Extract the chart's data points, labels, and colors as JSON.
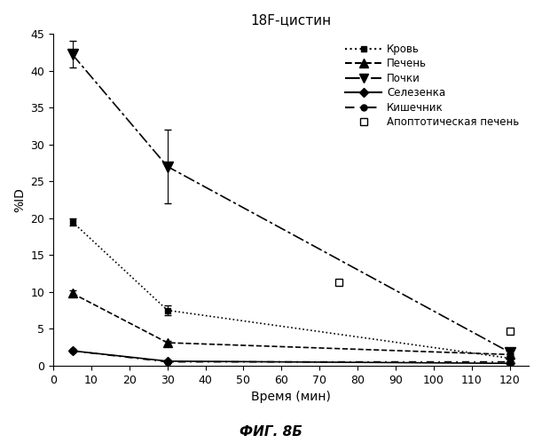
{
  "title": "18F-цистин",
  "xlabel": "Время (мин)",
  "ylabel": "%ID",
  "caption": "ФИГ. 8Б",
  "xlim": [
    0,
    125
  ],
  "ylim": [
    0,
    45
  ],
  "xticks": [
    0,
    10,
    20,
    30,
    40,
    50,
    60,
    70,
    80,
    90,
    100,
    110,
    120
  ],
  "yticks": [
    0,
    5,
    10,
    15,
    20,
    25,
    30,
    35,
    40,
    45
  ],
  "blood": {
    "x": [
      5,
      30,
      120
    ],
    "y": [
      19.5,
      7.5,
      1.0
    ],
    "yerr": [
      0.5,
      0.7,
      0.2
    ],
    "label": "Кровь"
  },
  "liver": {
    "x": [
      5,
      30,
      120
    ],
    "y": [
      9.8,
      3.1,
      1.5
    ],
    "yerr": [
      0.4,
      0.3,
      0.2
    ],
    "label": "Печень"
  },
  "kidney": {
    "x": [
      5,
      30,
      120
    ],
    "y": [
      42.2,
      27.0,
      1.8
    ],
    "yerr": [
      1.8,
      5.0,
      0.3
    ],
    "label": "Почки"
  },
  "spleen": {
    "x": [
      5,
      30,
      120
    ],
    "y": [
      2.0,
      0.6,
      0.3
    ],
    "yerr": [
      0.1,
      0.1,
      0.05
    ],
    "label": "Селезенка"
  },
  "intestine": {
    "x": [
      5,
      30,
      120
    ],
    "y": [
      2.0,
      0.5,
      0.5
    ],
    "yerr": [
      0.1,
      0.05,
      0.05
    ],
    "label": "Кишечник"
  },
  "apoptotic": {
    "x": [
      75,
      120
    ],
    "y": [
      11.3,
      4.7
    ],
    "label": "Апоптотическая печень"
  },
  "background_color": "#ffffff",
  "legend_fontsize": 8.5,
  "title_fontsize": 11,
  "axis_fontsize": 10,
  "tick_fontsize": 9
}
